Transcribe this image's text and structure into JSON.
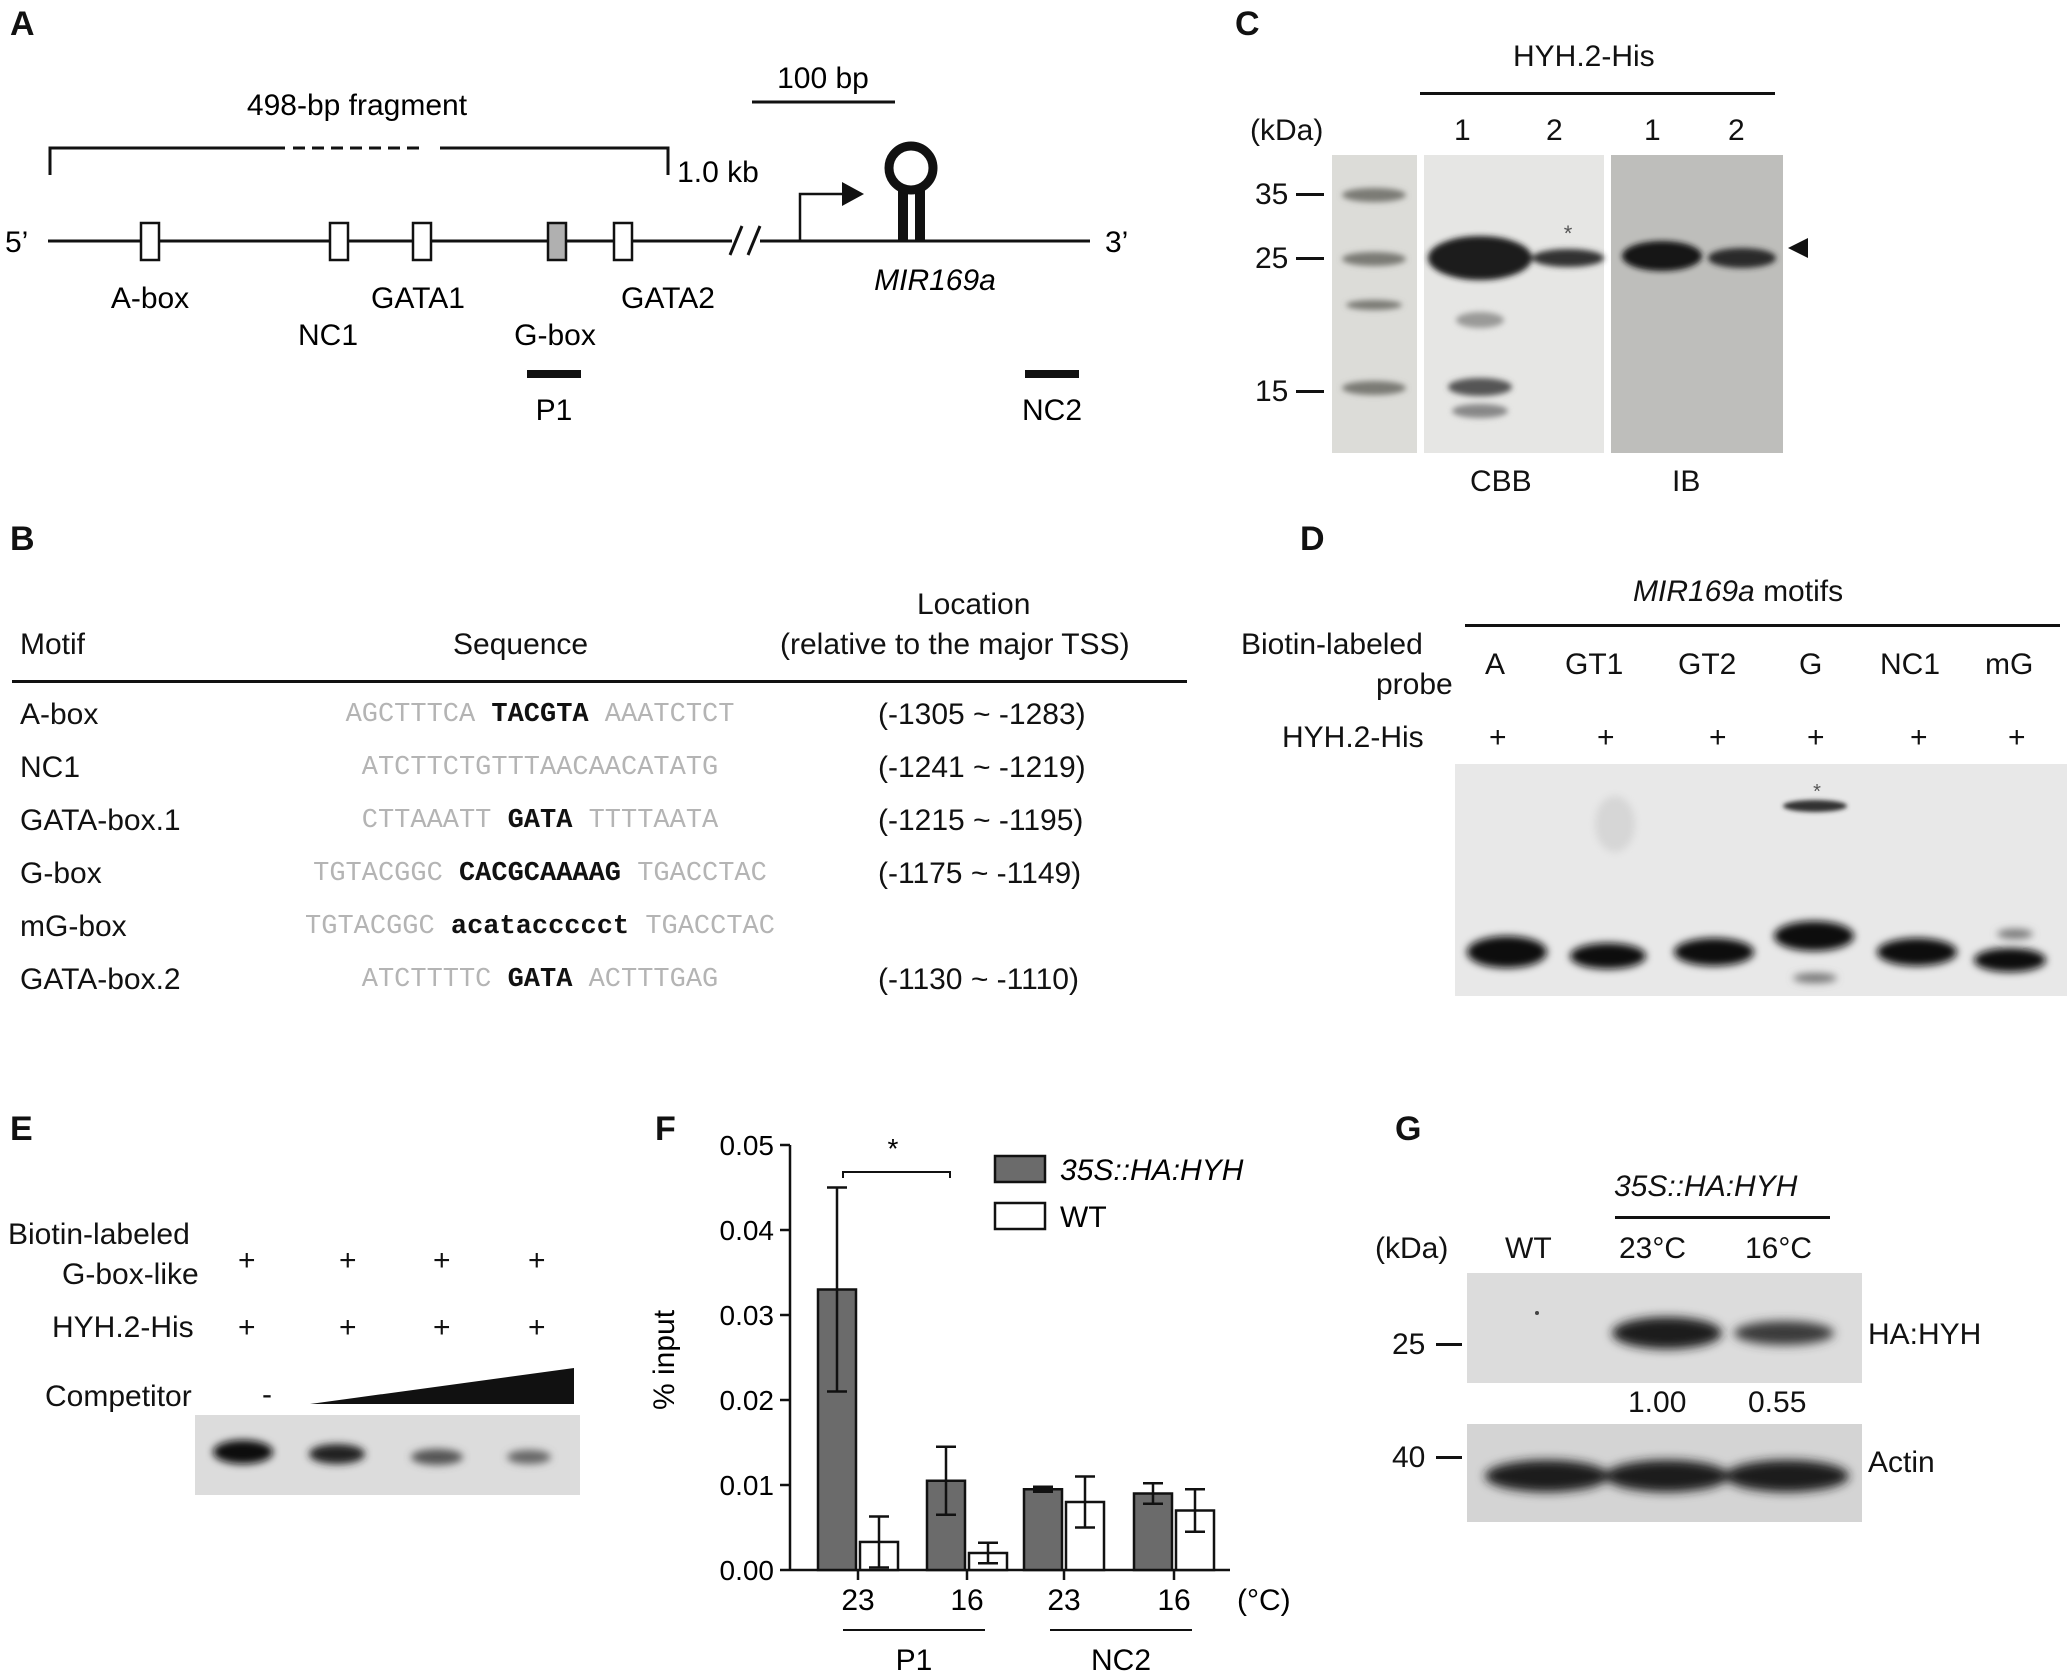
{
  "panels": {
    "a": {
      "label": "A",
      "fragment_label": "498-bp fragment",
      "scale_label": "100 bp",
      "distance_label": "1.0 kb",
      "five_prime": "5’",
      "three_prime": "3’",
      "gene": "MIR169a",
      "elements": [
        "A-box",
        "NC1",
        "GATA1",
        "G-box",
        "GATA2"
      ],
      "regions": [
        "P1",
        "NC2"
      ],
      "colors": {
        "g_box_fill": "#b0b0b0",
        "box_fill": "#ffffff"
      }
    },
    "b": {
      "label": "B",
      "headers": {
        "motif": "Motif",
        "sequence": "Sequence",
        "location_line1": "Location",
        "location_line2": "(relative to the major TSS)"
      },
      "rows": [
        {
          "motif": "A-box",
          "pre": "AGCTTTCA ",
          "core": "TACGTA",
          "post": " AAATCTCT",
          "location": "(-1305 ~ -1283)"
        },
        {
          "motif": "NC1",
          "pre": "ATCTTCTGTTTAACAACATATG",
          "core": "",
          "post": "",
          "location": "(-1241 ~ -1219)"
        },
        {
          "motif": "GATA-box.1",
          "pre": "CTTAAATT ",
          "core": "GATA",
          "post": " TTTTAATA",
          "location": "(-1215 ~ -1195)"
        },
        {
          "motif": "G-box",
          "pre": "TGTACGGC ",
          "core": "CACGCAAAAG",
          "post": " TGACCTAC",
          "location": "(-1175 ~ -1149)"
        },
        {
          "motif": "mG-box",
          "pre": "TGTACGGC ",
          "core": "acataccccct",
          "post": " TGACCTAC",
          "location": ""
        },
        {
          "motif": "GATA-box.2",
          "pre": "ATCTTTTC ",
          "core": "GATA",
          "post": " ACTTTGAG",
          "location": "(-1130 ~ -1110)"
        }
      ]
    },
    "c": {
      "label": "C",
      "protein": "HYH.2-His",
      "unit": "(kDa)",
      "lanes": [
        "1",
        "2",
        "1",
        "2"
      ],
      "markers": [
        "35",
        "25",
        "15"
      ],
      "bottom_labels": [
        "CBB",
        "IB"
      ],
      "asterisk": "*"
    },
    "d": {
      "label": "D",
      "title_gene": "MIR169a",
      "title_rest": " motifs",
      "probe_label_line1": "Biotin-labeled",
      "probe_label_line2": "probe",
      "protein_label": "HYH.2-His",
      "probes": [
        "A",
        "GT1",
        "GT2",
        "G",
        "NC1",
        "mG"
      ],
      "plus": "+",
      "asterisk": "*"
    },
    "e": {
      "label": "E",
      "probe_line1": "Biotin-labeled",
      "probe_line2": "G-box-like",
      "protein_label": "HYH.2-His",
      "competitor_label": "Competitor",
      "minus": "-",
      "plus": "+"
    },
    "f": {
      "label": "F",
      "ylabel": "% input",
      "unit_label": "(°C)",
      "significance": "*",
      "groups": [
        "P1",
        "NC2"
      ]
    },
    "g": {
      "label": "G",
      "unit": "(kDa)",
      "genotype": "35S::HA:HYH",
      "lanes": [
        "WT",
        "23°C",
        "16°C"
      ],
      "markers": [
        "25",
        "40"
      ],
      "rows": [
        "HA:HYH",
        "Actin"
      ],
      "quant": [
        "1.00",
        "0.55"
      ]
    }
  },
  "chart_data": {
    "type": "bar",
    "categories": [
      "23",
      "16",
      "23",
      "16"
    ],
    "groups": [
      "P1",
      "P1",
      "NC2",
      "NC2"
    ],
    "series": [
      {
        "name": "35S::HA:HYH",
        "values": [
          0.033,
          0.0105,
          0.0095,
          0.009
        ],
        "errors": [
          0.012,
          0.004,
          0.0003,
          0.0012
        ],
        "color": "#6b6b6b"
      },
      {
        "name": "WT",
        "values": [
          0.0033,
          0.002,
          0.008,
          0.007
        ],
        "errors": [
          0.003,
          0.0012,
          0.003,
          0.0025
        ],
        "color": "#ffffff"
      }
    ],
    "xlabel": "",
    "ylabel": "% input",
    "ylim": [
      0,
      0.05
    ],
    "yticks": [
      "0.00",
      "0.01",
      "0.02",
      "0.03",
      "0.04",
      "0.05"
    ],
    "legend": "top-right"
  }
}
